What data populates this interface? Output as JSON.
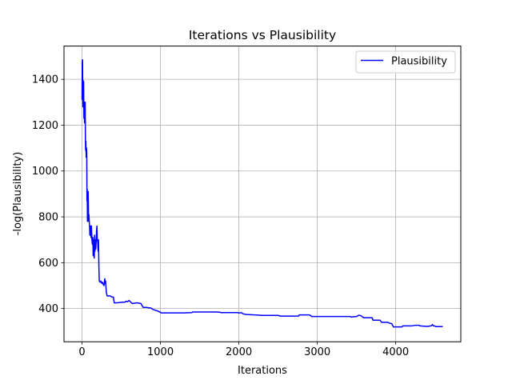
{
  "chart_data": {
    "type": "line",
    "title": "Iterations vs Plausibility",
    "xlabel": "Iterations",
    "ylabel": "-log(Plausibility)",
    "xlim": [
      -230,
      4830
    ],
    "ylim": [
      255,
      1545
    ],
    "xticks": [
      0,
      1000,
      2000,
      3000,
      4000
    ],
    "yticks": [
      400,
      600,
      800,
      1000,
      1200,
      1400
    ],
    "grid": true,
    "legend_position": "top-right",
    "series": [
      {
        "name": "Plausibility",
        "color": "#0000ff",
        "points": [
          [
            0,
            1310
          ],
          [
            3,
            1475
          ],
          [
            7,
            1485
          ],
          [
            10,
            1280
          ],
          [
            14,
            1395
          ],
          [
            17,
            1320
          ],
          [
            20,
            1390
          ],
          [
            24,
            1230
          ],
          [
            28,
            1300
          ],
          [
            32,
            1210
          ],
          [
            36,
            1250
          ],
          [
            40,
            1300
          ],
          [
            43,
            1140
          ],
          [
            46,
            1090
          ],
          [
            49,
            1130
          ],
          [
            53,
            1060
          ],
          [
            57,
            1100
          ],
          [
            60,
            1080
          ],
          [
            63,
            870
          ],
          [
            66,
            920
          ],
          [
            69,
            780
          ],
          [
            72,
            800
          ],
          [
            75,
            860
          ],
          [
            78,
            910
          ],
          [
            81,
            850
          ],
          [
            84,
            780
          ],
          [
            88,
            810
          ],
          [
            92,
            780
          ],
          [
            96,
            760
          ],
          [
            100,
            720
          ],
          [
            106,
            760
          ],
          [
            110,
            730
          ],
          [
            115,
            710
          ],
          [
            120,
            760
          ],
          [
            126,
            700
          ],
          [
            132,
            680
          ],
          [
            138,
            710
          ],
          [
            142,
            630
          ],
          [
            148,
            640
          ],
          [
            152,
            700
          ],
          [
            156,
            620
          ],
          [
            160,
            720
          ],
          [
            165,
            650
          ],
          [
            170,
            700
          ],
          [
            175,
            660
          ],
          [
            180,
            690
          ],
          [
            185,
            740
          ],
          [
            190,
            760
          ],
          [
            195,
            700
          ],
          [
            200,
            690
          ],
          [
            205,
            650
          ],
          [
            210,
            700
          ],
          [
            215,
            580
          ],
          [
            220,
            520
          ],
          [
            230,
            515
          ],
          [
            240,
            520
          ],
          [
            250,
            510
          ],
          [
            260,
            515
          ],
          [
            270,
            505
          ],
          [
            280,
            500
          ],
          [
            290,
            530
          ],
          [
            295,
            510
          ],
          [
            300,
            520
          ],
          [
            310,
            470
          ],
          [
            320,
            455
          ],
          [
            340,
            455
          ],
          [
            360,
            455
          ],
          [
            380,
            450
          ],
          [
            400,
            450
          ],
          [
            410,
            425
          ],
          [
            450,
            425
          ],
          [
            500,
            427
          ],
          [
            550,
            428
          ],
          [
            560,
            432
          ],
          [
            580,
            430
          ],
          [
            600,
            435
          ],
          [
            620,
            428
          ],
          [
            640,
            422
          ],
          [
            700,
            425
          ],
          [
            750,
            422
          ],
          [
            780,
            405
          ],
          [
            820,
            405
          ],
          [
            880,
            402
          ],
          [
            900,
            397
          ],
          [
            930,
            393
          ],
          [
            960,
            390
          ],
          [
            990,
            385
          ],
          [
            1010,
            381
          ],
          [
            1100,
            381
          ],
          [
            1200,
            381
          ],
          [
            1300,
            381
          ],
          [
            1400,
            382
          ],
          [
            1410,
            385
          ],
          [
            1500,
            385
          ],
          [
            1600,
            385
          ],
          [
            1700,
            385
          ],
          [
            1760,
            384
          ],
          [
            1770,
            382
          ],
          [
            1900,
            382
          ],
          [
            1990,
            382
          ],
          [
            2000,
            380
          ],
          [
            2030,
            382
          ],
          [
            2060,
            376
          ],
          [
            2100,
            374
          ],
          [
            2200,
            372
          ],
          [
            2300,
            370
          ],
          [
            2400,
            370
          ],
          [
            2500,
            370
          ],
          [
            2530,
            367
          ],
          [
            2700,
            367
          ],
          [
            2760,
            367
          ],
          [
            2770,
            372
          ],
          [
            2900,
            372
          ],
          [
            2930,
            365
          ],
          [
            3000,
            365
          ],
          [
            3100,
            365
          ],
          [
            3300,
            365
          ],
          [
            3420,
            365
          ],
          [
            3430,
            363
          ],
          [
            3500,
            365
          ],
          [
            3530,
            371
          ],
          [
            3560,
            368
          ],
          [
            3590,
            360
          ],
          [
            3700,
            360
          ],
          [
            3710,
            349
          ],
          [
            3800,
            349
          ],
          [
            3820,
            340
          ],
          [
            3900,
            340
          ],
          [
            3920,
            336
          ],
          [
            3950,
            334
          ],
          [
            3970,
            320
          ],
          [
            4080,
            320
          ],
          [
            4090,
            324
          ],
          [
            4200,
            324
          ],
          [
            4250,
            327
          ],
          [
            4300,
            327
          ],
          [
            4310,
            324
          ],
          [
            4400,
            322
          ],
          [
            4450,
            324
          ],
          [
            4470,
            330
          ],
          [
            4480,
            324
          ],
          [
            4500,
            324
          ],
          [
            4510,
            321
          ],
          [
            4600,
            321
          ]
        ]
      }
    ]
  }
}
